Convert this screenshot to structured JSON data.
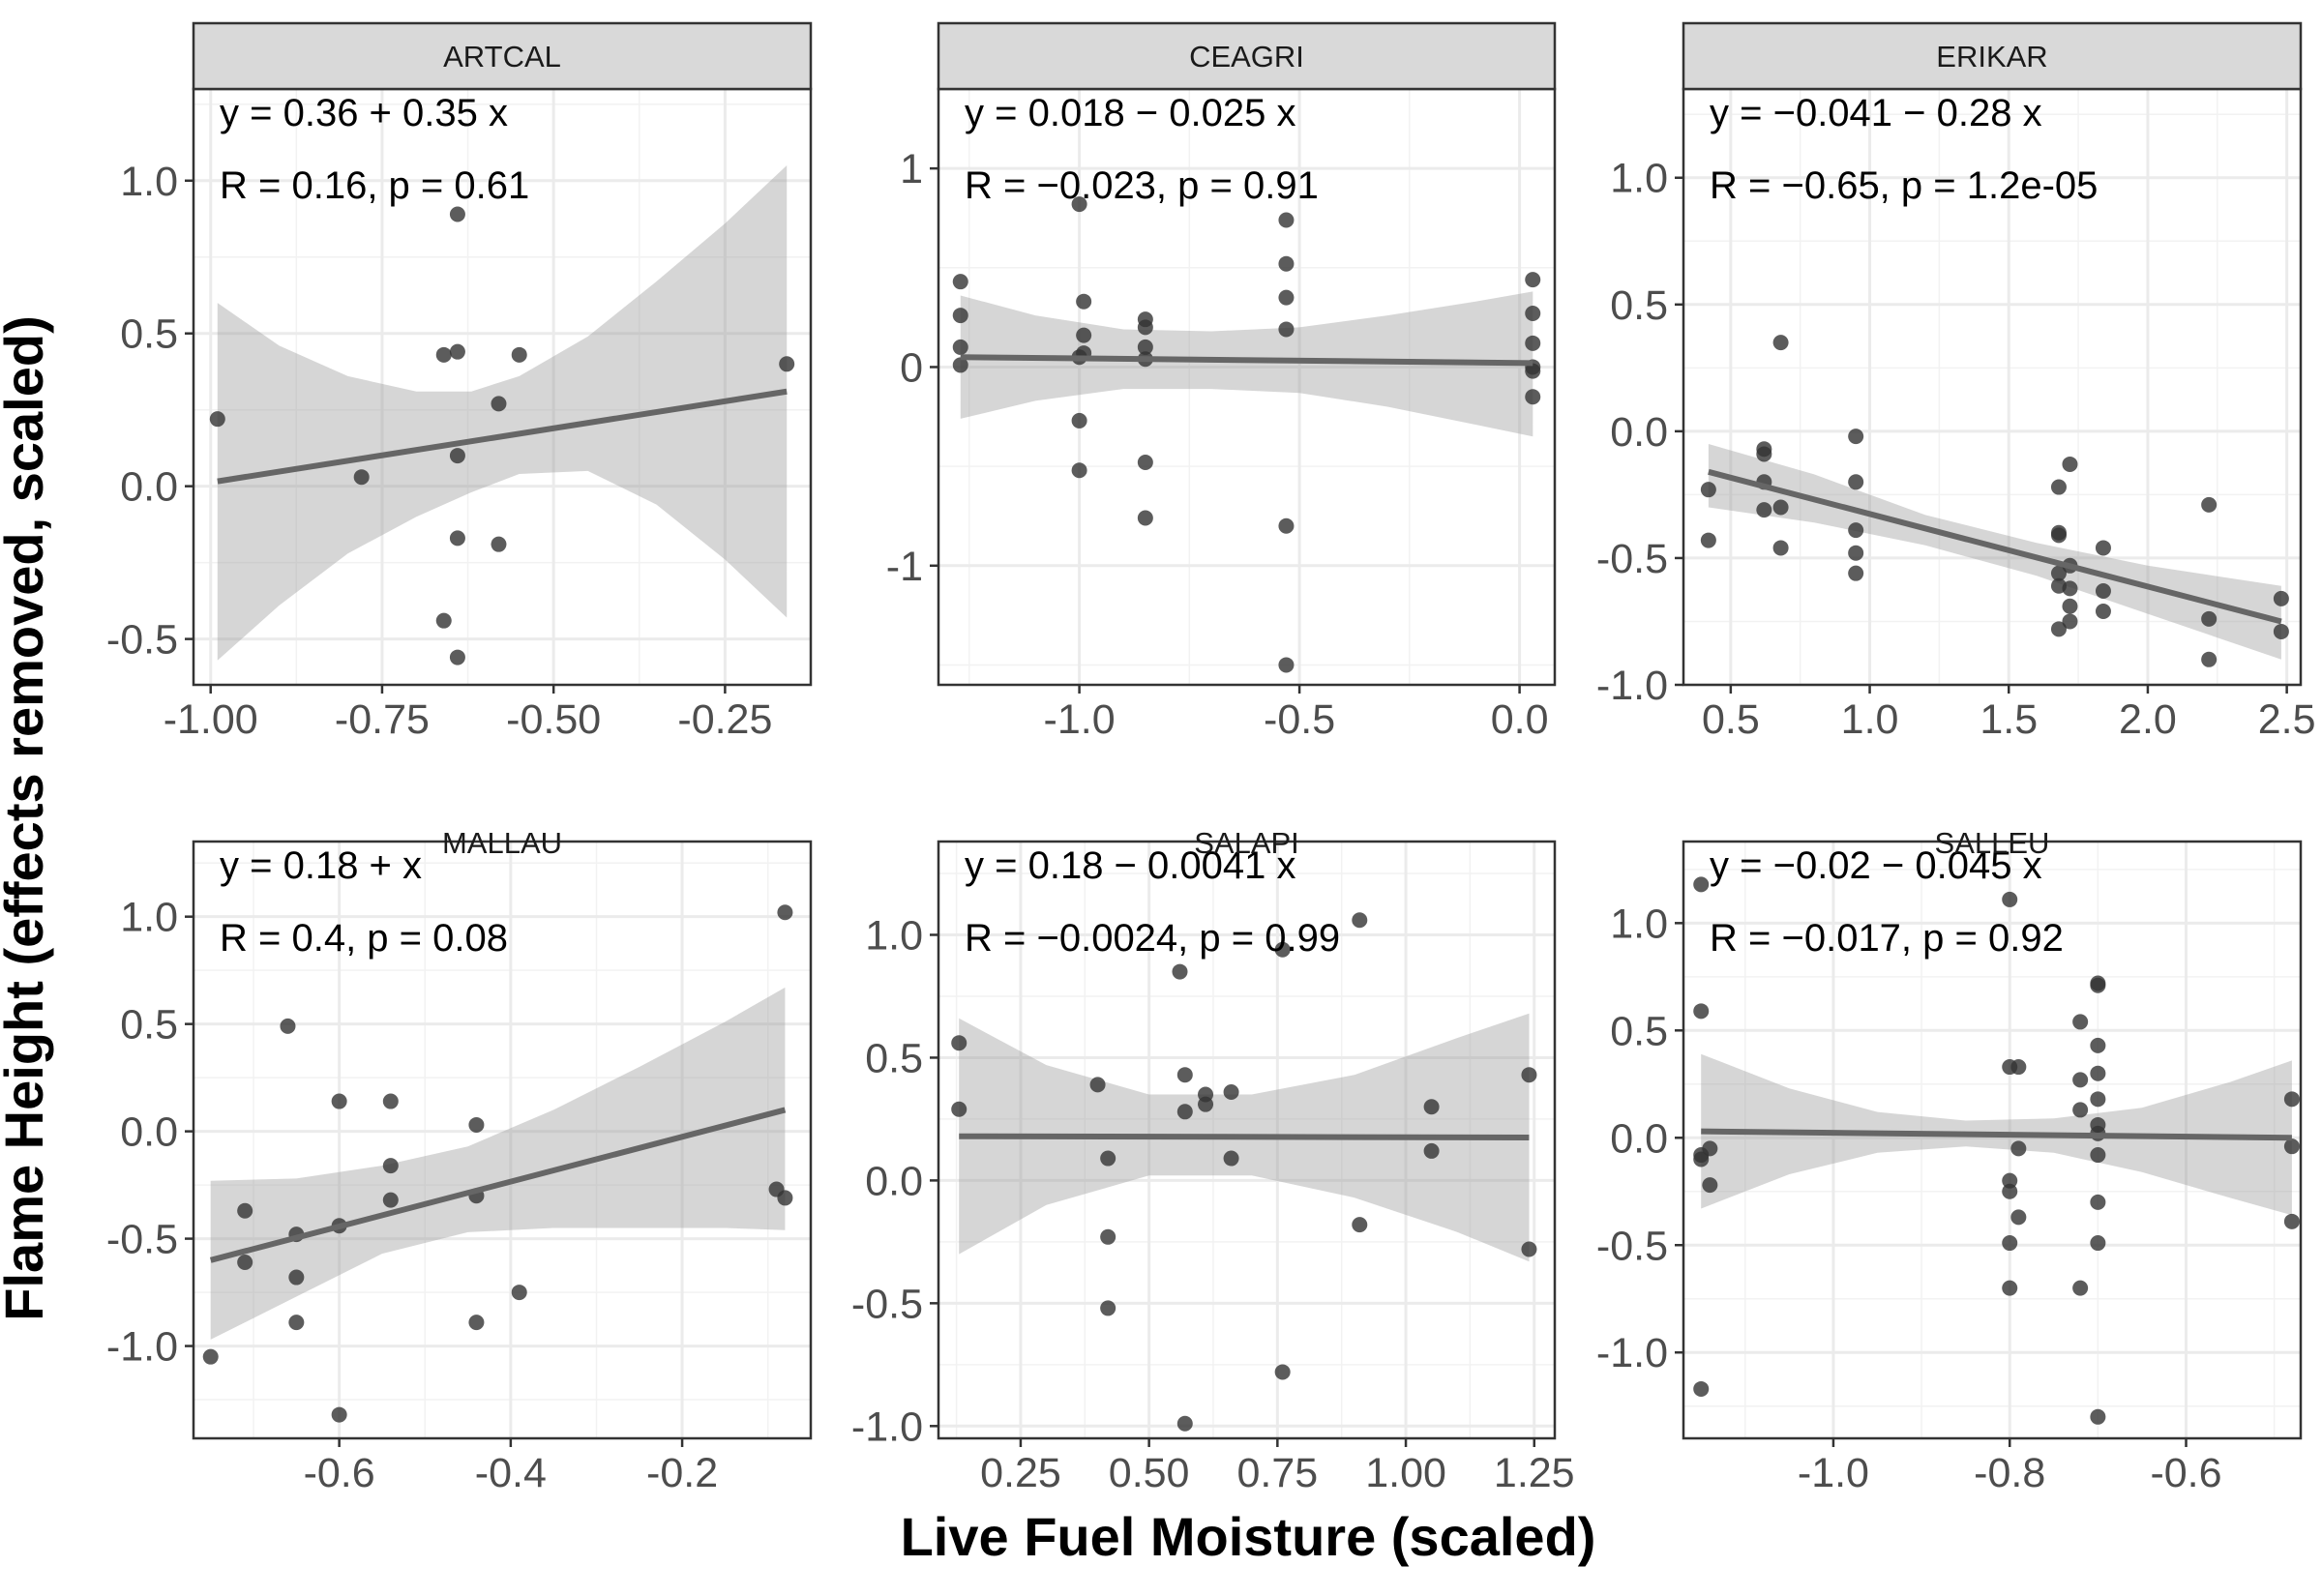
{
  "chart_data": {
    "type": "scatter",
    "xlabel": "Live Fuel Moisture (scaled)",
    "ylabel": "Flame Height (effects removed, scaled)",
    "panels": [
      {
        "name": "ARTCAL",
        "equation": "y = 0.36 + 0.35 x",
        "stats": "R = 0.16, p = 0.61",
        "xlim": [
          -1.025,
          -0.125
        ],
        "ylim": [
          -0.65,
          1.3
        ],
        "xticks": [
          -1.0,
          -0.75,
          -0.5,
          -0.25
        ],
        "xtick_labels": [
          "-1.00",
          "-0.75",
          "-0.50",
          "-0.25"
        ],
        "yticks": [
          -0.5,
          0.0,
          0.5,
          1.0
        ],
        "ytick_labels": [
          "-0.5",
          "0.0",
          "0.5",
          "1.0"
        ],
        "points": [
          [
            -0.99,
            0.22
          ],
          [
            -0.78,
            0.03
          ],
          [
            -0.66,
            0.43
          ],
          [
            -0.64,
            0.44
          ],
          [
            -0.64,
            0.1
          ],
          [
            -0.64,
            0.89
          ],
          [
            -0.55,
            0.43
          ],
          [
            -0.58,
            0.27
          ],
          [
            -0.64,
            -0.17
          ],
          [
            -0.58,
            -0.19
          ],
          [
            -0.66,
            -0.44
          ],
          [
            -0.64,
            -0.56
          ],
          [
            -0.16,
            0.4
          ]
        ],
        "fit": {
          "x0": -0.99,
          "y0": 0.016,
          "x1": -0.16,
          "y1": 0.31
        },
        "band": {
          "x": [
            -0.99,
            -0.9,
            -0.8,
            -0.7,
            -0.62,
            -0.55,
            -0.45,
            -0.35,
            -0.25,
            -0.16
          ],
          "upper": [
            0.6,
            0.46,
            0.36,
            0.31,
            0.31,
            0.36,
            0.49,
            0.67,
            0.86,
            1.05
          ],
          "lower": [
            -0.57,
            -0.39,
            -0.22,
            -0.1,
            -0.02,
            0.04,
            0.05,
            -0.06,
            -0.24,
            -0.43
          ]
        }
      },
      {
        "name": "CEAGRI",
        "equation": "y = 0.018 − 0.025 x",
        "stats": "R = −0.023, p = 0.91",
        "xlim": [
          -1.32,
          0.08
        ],
        "ylim": [
          -1.6,
          1.4
        ],
        "xticks": [
          -1.0,
          -0.5,
          0.0
        ],
        "xtick_labels": [
          "-1.0",
          "-0.5",
          "0.0"
        ],
        "yticks": [
          -1,
          0,
          1
        ],
        "ytick_labels": [
          "-1",
          "0",
          "1"
        ],
        "points": [
          [
            -1.27,
            0.43
          ],
          [
            -1.27,
            0.26
          ],
          [
            -1.27,
            0.1
          ],
          [
            -1.27,
            0.01
          ],
          [
            -1.0,
            0.82
          ],
          [
            -0.99,
            0.33
          ],
          [
            -0.99,
            0.16
          ],
          [
            -0.99,
            0.07
          ],
          [
            -1.0,
            0.05
          ],
          [
            -1.0,
            -0.27
          ],
          [
            -1.0,
            -0.52
          ],
          [
            -0.85,
            0.24
          ],
          [
            -0.85,
            0.2
          ],
          [
            -0.85,
            0.1
          ],
          [
            -0.85,
            0.04
          ],
          [
            -0.85,
            -0.48
          ],
          [
            -0.85,
            -0.76
          ],
          [
            -0.53,
            0.74
          ],
          [
            -0.53,
            0.52
          ],
          [
            -0.53,
            0.35
          ],
          [
            -0.53,
            0.19
          ],
          [
            -0.53,
            -0.8
          ],
          [
            -0.53,
            -1.5
          ],
          [
            0.03,
            0.44
          ],
          [
            0.03,
            0.27
          ],
          [
            0.03,
            0.12
          ],
          [
            0.03,
            0.0
          ],
          [
            0.03,
            -0.02
          ],
          [
            0.03,
            -0.15
          ]
        ],
        "fit": {
          "x0": -1.27,
          "y0": 0.05,
          "x1": 0.03,
          "y1": 0.02
        },
        "band": {
          "x": [
            -1.27,
            -1.1,
            -0.9,
            -0.7,
            -0.5,
            -0.3,
            -0.1,
            0.03
          ],
          "upper": [
            0.36,
            0.26,
            0.19,
            0.18,
            0.2,
            0.26,
            0.33,
            0.38
          ],
          "lower": [
            -0.26,
            -0.17,
            -0.11,
            -0.11,
            -0.13,
            -0.2,
            -0.29,
            -0.35
          ]
        }
      },
      {
        "name": "ERIKAR",
        "equation": "y = −0.041 − 0.28 x",
        "stats": "R = −0.65, p = 1.2e-05",
        "xlim": [
          0.33,
          2.55
        ],
        "ylim": [
          -1.0,
          1.35
        ],
        "xticks": [
          0.5,
          1.0,
          1.5,
          2.0,
          2.5
        ],
        "xtick_labels": [
          "0.5",
          "1.0",
          "1.5",
          "2.0",
          "2.5"
        ],
        "yticks": [
          -1.0,
          -0.5,
          0.0,
          0.5,
          1.0
        ],
        "ytick_labels": [
          "-1.0",
          "-0.5",
          "0.0",
          "0.5",
          "1.0"
        ],
        "points": [
          [
            0.42,
            -0.23
          ],
          [
            0.42,
            -0.43
          ],
          [
            0.62,
            -0.07
          ],
          [
            0.62,
            -0.09
          ],
          [
            0.62,
            -0.2
          ],
          [
            0.62,
            -0.31
          ],
          [
            0.68,
            0.35
          ],
          [
            0.68,
            -0.3
          ],
          [
            0.68,
            -0.46
          ],
          [
            0.95,
            -0.02
          ],
          [
            0.95,
            -0.2
          ],
          [
            0.95,
            -0.39
          ],
          [
            0.95,
            -0.48
          ],
          [
            0.95,
            -0.56
          ],
          [
            1.68,
            -0.22
          ],
          [
            1.68,
            -0.4
          ],
          [
            1.68,
            -0.41
          ],
          [
            1.68,
            -0.56
          ],
          [
            1.68,
            -0.61
          ],
          [
            1.68,
            -0.78
          ],
          [
            1.72,
            -0.13
          ],
          [
            1.72,
            -0.53
          ],
          [
            1.72,
            -0.62
          ],
          [
            1.72,
            -0.69
          ],
          [
            1.72,
            -0.75
          ],
          [
            1.84,
            -0.46
          ],
          [
            1.84,
            -0.63
          ],
          [
            1.84,
            -0.71
          ],
          [
            2.22,
            -0.29
          ],
          [
            2.22,
            -0.74
          ],
          [
            2.22,
            -0.9
          ],
          [
            2.48,
            -0.66
          ],
          [
            2.48,
            -0.79
          ]
        ],
        "fit": {
          "x0": 0.42,
          "y0": -0.16,
          "x1": 2.48,
          "y1": -0.75
        },
        "band": {
          "x": [
            0.42,
            0.8,
            1.2,
            1.6,
            2.0,
            2.48
          ],
          "upper": [
            -0.05,
            -0.17,
            -0.33,
            -0.44,
            -0.53,
            -0.61
          ],
          "lower": [
            -0.3,
            -0.36,
            -0.45,
            -0.57,
            -0.72,
            -0.9
          ]
        }
      },
      {
        "name": "MALLAU",
        "equation": "y = 0.18 +  x",
        "stats": "R = 0.4, p = 0.08",
        "xlim": [
          -0.77,
          -0.05
        ],
        "ylim": [
          -1.43,
          1.35
        ],
        "xticks": [
          -0.6,
          -0.4,
          -0.2
        ],
        "xtick_labels": [
          "-0.6",
          "-0.4",
          "-0.2"
        ],
        "yticks": [
          -1.0,
          -0.5,
          0.0,
          0.5,
          1.0
        ],
        "ytick_labels": [
          "-1.0",
          "-0.5",
          "0.0",
          "0.5",
          "1.0"
        ],
        "points": [
          [
            -0.75,
            -1.05
          ],
          [
            -0.71,
            -0.37
          ],
          [
            -0.71,
            -0.61
          ],
          [
            -0.66,
            0.49
          ],
          [
            -0.65,
            -0.48
          ],
          [
            -0.65,
            -0.68
          ],
          [
            -0.65,
            -0.89
          ],
          [
            -0.6,
            0.14
          ],
          [
            -0.6,
            -0.44
          ],
          [
            -0.6,
            -1.32
          ],
          [
            -0.54,
            0.14
          ],
          [
            -0.54,
            -0.16
          ],
          [
            -0.54,
            -0.32
          ],
          [
            -0.44,
            0.03
          ],
          [
            -0.44,
            -0.3
          ],
          [
            -0.44,
            -0.89
          ],
          [
            -0.39,
            -0.75
          ],
          [
            -0.09,
            -0.27
          ],
          [
            -0.08,
            1.02
          ],
          [
            -0.08,
            -0.31
          ]
        ],
        "fit": {
          "x0": -0.75,
          "y0": -0.6,
          "x1": -0.08,
          "y1": 0.1
        },
        "band": {
          "x": [
            -0.75,
            -0.65,
            -0.55,
            -0.45,
            -0.35,
            -0.25,
            -0.15,
            -0.08
          ],
          "upper": [
            -0.23,
            -0.22,
            -0.16,
            -0.07,
            0.1,
            0.3,
            0.51,
            0.67
          ],
          "lower": [
            -0.97,
            -0.77,
            -0.57,
            -0.47,
            -0.45,
            -0.45,
            -0.45,
            -0.46
          ]
        }
      },
      {
        "name": "SALAPI",
        "equation": "y = 0.18 − 0.0041 x",
        "stats": "R = −0.0024, p = 0.99",
        "xlim": [
          0.09,
          1.29
        ],
        "ylim": [
          -1.05,
          1.38
        ],
        "xticks": [
          0.25,
          0.5,
          0.75,
          1.0,
          1.25
        ],
        "xtick_labels": [
          "0.25",
          "0.50",
          "0.75",
          "1.00",
          "1.25"
        ],
        "yticks": [
          -1.0,
          -0.5,
          0.0,
          0.5,
          1.0
        ],
        "ytick_labels": [
          "-1.0",
          "-0.5",
          "0.0",
          "0.5",
          "1.0"
        ],
        "points": [
          [
            0.13,
            0.56
          ],
          [
            0.13,
            0.29
          ],
          [
            0.4,
            0.39
          ],
          [
            0.42,
            0.09
          ],
          [
            0.42,
            -0.23
          ],
          [
            0.42,
            -0.52
          ],
          [
            0.56,
            0.85
          ],
          [
            0.57,
            0.43
          ],
          [
            0.57,
            0.28
          ],
          [
            0.57,
            -0.99
          ],
          [
            0.61,
            0.35
          ],
          [
            0.61,
            0.31
          ],
          [
            0.66,
            0.36
          ],
          [
            0.66,
            0.09
          ],
          [
            0.76,
            0.94
          ],
          [
            0.76,
            -0.78
          ],
          [
            0.91,
            1.06
          ],
          [
            0.91,
            -0.18
          ],
          [
            1.05,
            0.3
          ],
          [
            1.05,
            0.12
          ],
          [
            1.24,
            0.43
          ],
          [
            1.24,
            -0.28
          ]
        ],
        "fit": {
          "x0": 0.13,
          "y0": 0.18,
          "x1": 1.24,
          "y1": 0.175
        },
        "band": {
          "x": [
            0.13,
            0.3,
            0.5,
            0.7,
            0.9,
            1.1,
            1.24
          ],
          "upper": [
            0.66,
            0.47,
            0.35,
            0.35,
            0.43,
            0.58,
            0.68
          ],
          "lower": [
            -0.3,
            -0.1,
            0.02,
            0.02,
            -0.07,
            -0.21,
            -0.33
          ]
        }
      },
      {
        "name": "SALLEU",
        "equation": "y = −0.02 − 0.045 x",
        "stats": "R = −0.017, p = 0.92",
        "xlim": [
          -1.17,
          -0.47
        ],
        "ylim": [
          -1.4,
          1.38
        ],
        "xticks": [
          -1.0,
          -0.8,
          -0.6
        ],
        "xtick_labels": [
          "-1.0",
          "-0.8",
          "-0.6"
        ],
        "yticks": [
          -1.0,
          -0.5,
          0.0,
          0.5,
          1.0
        ],
        "ytick_labels": [
          "-1.0",
          "-0.5",
          "0.0",
          "0.5",
          "1.0"
        ],
        "points": [
          [
            -1.15,
            1.18
          ],
          [
            -1.15,
            0.59
          ],
          [
            -1.15,
            -0.08
          ],
          [
            -1.15,
            -0.1
          ],
          [
            -1.14,
            -0.05
          ],
          [
            -1.14,
            -0.22
          ],
          [
            -1.15,
            -1.17
          ],
          [
            -0.8,
            1.11
          ],
          [
            -0.8,
            0.33
          ],
          [
            -0.79,
            0.33
          ],
          [
            -0.79,
            -0.05
          ],
          [
            -0.8,
            -0.2
          ],
          [
            -0.8,
            -0.25
          ],
          [
            -0.79,
            -0.37
          ],
          [
            -0.8,
            -0.49
          ],
          [
            -0.8,
            -0.7
          ],
          [
            -0.72,
            0.54
          ],
          [
            -0.72,
            0.27
          ],
          [
            -0.72,
            0.13
          ],
          [
            -0.72,
            -0.7
          ],
          [
            -0.7,
            0.72
          ],
          [
            -0.7,
            0.71
          ],
          [
            -0.7,
            0.43
          ],
          [
            -0.7,
            0.3
          ],
          [
            -0.7,
            0.18
          ],
          [
            -0.7,
            0.06
          ],
          [
            -0.7,
            0.02
          ],
          [
            -0.7,
            -0.08
          ],
          [
            -0.7,
            -0.3
          ],
          [
            -0.7,
            -0.49
          ],
          [
            -0.7,
            -1.3
          ],
          [
            -0.48,
            0.18
          ],
          [
            -0.48,
            -0.04
          ],
          [
            -0.48,
            -0.39
          ]
        ],
        "fit": {
          "x0": -1.15,
          "y0": 0.03,
          "x1": -0.48,
          "y1": 0.0
        },
        "band": {
          "x": [
            -1.15,
            -1.05,
            -0.95,
            -0.85,
            -0.75,
            -0.65,
            -0.55,
            -0.48
          ],
          "upper": [
            0.39,
            0.23,
            0.12,
            0.08,
            0.09,
            0.14,
            0.26,
            0.36
          ],
          "lower": [
            -0.33,
            -0.17,
            -0.07,
            -0.04,
            -0.07,
            -0.16,
            -0.28,
            -0.36
          ]
        }
      }
    ]
  }
}
